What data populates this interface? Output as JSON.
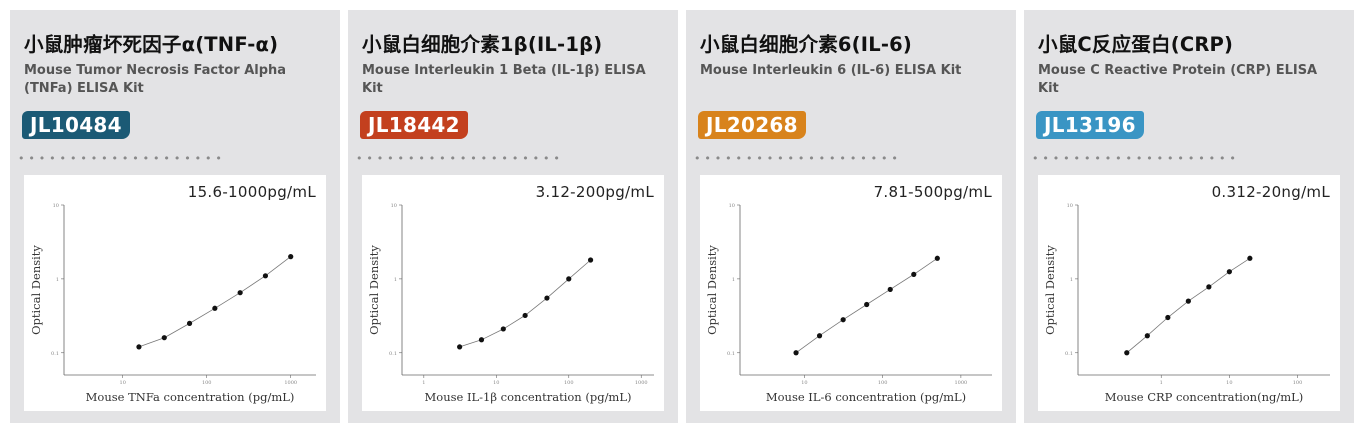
{
  "cards": [
    {
      "cn_title": "小鼠肿瘤坏死因子α(TNF-α)",
      "en_title": "Mouse Tumor Necrosis Factor Alpha (TNFa) ELISA Kit",
      "code": "JL10484",
      "code_color": "#1b5a75",
      "range": "15.6-1000pg/mL",
      "dots": "••••••••••••••••••••"
    },
    {
      "cn_title": "小鼠白细胞介素1β(IL-1β)",
      "en_title": "Mouse Interleukin 1 Beta (IL-1β) ELISA Kit",
      "code": "JL18442",
      "code_color": "#c3401e",
      "range": "3.12-200pg/mL",
      "dots": "••••••••••••••••••••"
    },
    {
      "cn_title": "小鼠白细胞介素6(IL-6)",
      "en_title": "Mouse Interleukin 6 (IL-6) ELISA Kit",
      "code": "JL20268",
      "code_color": "#d8831c",
      "range": "7.81-500pg/mL",
      "dots": "••••••••••••••••••••"
    },
    {
      "cn_title": "小鼠C反应蛋白(CRP)",
      "en_title": "Mouse C Reactive Protein (CRP) ELISA Kit",
      "code": "JL13196",
      "code_color": "#3a95c4",
      "range": "0.312-20ng/mL",
      "dots": "••••••••••••••••••••"
    }
  ],
  "chart_data": [
    {
      "type": "line",
      "xlabel": "Mouse TNFa concentration (pg/mL)",
      "ylabel": "Optical Density",
      "x_scale": "log",
      "y_scale": "log",
      "xlim": [
        2,
        2000
      ],
      "ylim": [
        0.05,
        10
      ],
      "x_ticks": [
        10,
        100,
        1000
      ],
      "y_ticks": [
        0.1,
        1,
        10
      ],
      "x_tick_labels": [
        "10",
        "100",
        "1000"
      ],
      "y_tick_labels": [
        "0.1",
        "1",
        "10"
      ],
      "x": [
        15.6,
        31.25,
        62.5,
        125,
        250,
        500,
        1000
      ],
      "y": [
        0.12,
        0.16,
        0.25,
        0.4,
        0.65,
        1.1,
        2.0
      ]
    },
    {
      "type": "line",
      "xlabel": "Mouse IL-1β concentration (pg/mL)",
      "ylabel": "Optical Density",
      "x_scale": "log",
      "y_scale": "log",
      "xlim": [
        0.5,
        1500
      ],
      "ylim": [
        0.05,
        10
      ],
      "x_ticks": [
        1,
        10,
        100,
        1000
      ],
      "y_ticks": [
        0.1,
        1,
        10
      ],
      "x_tick_labels": [
        "1",
        "10",
        "100",
        "1000"
      ],
      "y_tick_labels": [
        "0.1",
        "1",
        "10"
      ],
      "x": [
        3.12,
        6.25,
        12.5,
        25,
        50,
        100,
        200
      ],
      "y": [
        0.12,
        0.15,
        0.21,
        0.32,
        0.55,
        1.0,
        1.8
      ]
    },
    {
      "type": "line",
      "xlabel": "Mouse IL-6 concentration (pg/mL)",
      "ylabel": "Optical Density",
      "x_scale": "log",
      "y_scale": "log",
      "xlim": [
        1.5,
        2500
      ],
      "ylim": [
        0.05,
        10
      ],
      "x_ticks": [
        10,
        100,
        1000
      ],
      "y_ticks": [
        0.1,
        1,
        10
      ],
      "x_tick_labels": [
        "10",
        "100",
        "1000"
      ],
      "y_tick_labels": [
        "0.1",
        "1",
        "10"
      ],
      "x": [
        7.81,
        15.6,
        31.25,
        62.5,
        125,
        250,
        500
      ],
      "y": [
        0.1,
        0.17,
        0.28,
        0.45,
        0.72,
        1.15,
        1.9
      ]
    },
    {
      "type": "line",
      "xlabel": "Mouse CRP concentration(ng/mL)",
      "ylabel": "Optical Density",
      "x_scale": "log",
      "y_scale": "log",
      "xlim": [
        0.06,
        300
      ],
      "ylim": [
        0.05,
        10
      ],
      "x_ticks": [
        1,
        10,
        100
      ],
      "y_ticks": [
        0.1,
        1,
        10
      ],
      "x_tick_labels": [
        "1",
        "10",
        "100"
      ],
      "y_tick_labels": [
        "0.1",
        "1",
        "10"
      ],
      "x": [
        0.312,
        0.625,
        1.25,
        2.5,
        5,
        10,
        20
      ],
      "y": [
        0.1,
        0.17,
        0.3,
        0.5,
        0.78,
        1.25,
        1.9
      ]
    }
  ]
}
